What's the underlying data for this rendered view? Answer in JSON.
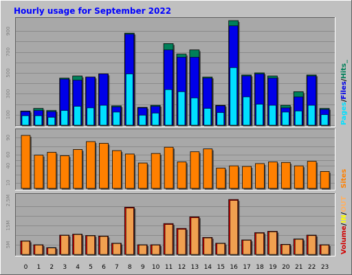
{
  "title": "Hourly usage for September 2022",
  "colors": {
    "background": "#c0c0c0",
    "plot_background": "#a8a8a8",
    "title": "#0000ff",
    "pages": "#00e0ff",
    "files": "#0000e8",
    "hits": "#00805a",
    "sites": "#ff8000",
    "volume": "#d00000",
    "in": "#ffff00",
    "out": "#ffb060",
    "bar_light": "#f0a050"
  },
  "legend": {
    "top": [
      "Pages",
      "/",
      "Files",
      "/",
      "Hits",
      "_"
    ],
    "middle": [
      "Sites"
    ],
    "bottom": [
      "Volume",
      "/",
      "IN",
      "/",
      "OUT"
    ]
  },
  "chart_data": [
    {
      "type": "bar",
      "name": "hits-files-pages",
      "categories": [
        "0",
        "1",
        "2",
        "3",
        "4",
        "5",
        "6",
        "7",
        "8",
        "9",
        "10",
        "11",
        "12",
        "13",
        "14",
        "15",
        "16",
        "17",
        "18",
        "19",
        "20",
        "21",
        "22",
        "23"
      ],
      "y_ticks": [
        "100",
        "300",
        "500",
        "700",
        "900"
      ],
      "ylim": [
        0,
        1000
      ],
      "series": [
        {
          "name": "Hits",
          "values": [
            135,
            160,
            140,
            450,
            470,
            460,
            490,
            185,
            880,
            170,
            190,
            780,
            680,
            720,
            460,
            190,
            1000,
            480,
            500,
            470,
            190,
            320,
            480,
            160
          ]
        },
        {
          "name": "Files",
          "values": [
            130,
            140,
            130,
            440,
            430,
            460,
            490,
            175,
            870,
            165,
            180,
            720,
            650,
            650,
            450,
            185,
            950,
            470,
            490,
            450,
            165,
            270,
            470,
            150
          ]
        },
        {
          "name": "Pages",
          "values": [
            90,
            90,
            75,
            140,
            180,
            165,
            190,
            125,
            490,
            95,
            115,
            340,
            320,
            260,
            160,
            120,
            550,
            270,
            200,
            190,
            125,
            135,
            190,
            100
          ]
        }
      ]
    },
    {
      "type": "bar",
      "name": "sites",
      "categories": [
        "0",
        "1",
        "2",
        "3",
        "4",
        "5",
        "6",
        "7",
        "8",
        "9",
        "10",
        "11",
        "12",
        "13",
        "14",
        "15",
        "16",
        "17",
        "18",
        "19",
        "20",
        "21",
        "22",
        "23"
      ],
      "y_ticks": [
        "10",
        "40",
        "60",
        "90"
      ],
      "ylim": [
        0,
        100
      ],
      "series": [
        {
          "name": "Sites",
          "values": [
            94,
            59,
            64,
            58,
            69,
            83,
            80,
            67,
            61,
            45,
            62,
            73,
            47,
            65,
            70,
            36,
            40,
            39,
            44,
            47,
            46,
            40,
            48,
            30
          ]
        }
      ]
    },
    {
      "type": "bar",
      "name": "volume",
      "categories": [
        "0",
        "1",
        "2",
        "3",
        "4",
        "5",
        "6",
        "7",
        "8",
        "9",
        "10",
        "11",
        "12",
        "13",
        "14",
        "15",
        "16",
        "17",
        "18",
        "19",
        "20",
        "21",
        "22",
        "23"
      ],
      "y_ticks": [
        "5M",
        "15M",
        "2.5M"
      ],
      "ylim": [
        0,
        30
      ],
      "series": [
        {
          "name": "Volume",
          "values": [
            7.0,
            5.0,
            3.5,
            10.0,
            10.5,
            9.8,
            9.5,
            5.8,
            24.5,
            5.0,
            5.0,
            16.0,
            13.5,
            19.5,
            8.8,
            5.8,
            28.5,
            7.5,
            11.3,
            12.0,
            5.2,
            8.0,
            10.0,
            5.0
          ]
        },
        {
          "name": "OUT",
          "values": [
            6.8,
            4.8,
            3.3,
            9.8,
            10.3,
            9.6,
            9.3,
            5.6,
            24.0,
            4.8,
            4.8,
            15.5,
            13.0,
            19.0,
            8.5,
            5.6,
            28.0,
            7.3,
            11.0,
            11.7,
            5.0,
            7.8,
            9.7,
            4.8
          ]
        }
      ]
    }
  ]
}
